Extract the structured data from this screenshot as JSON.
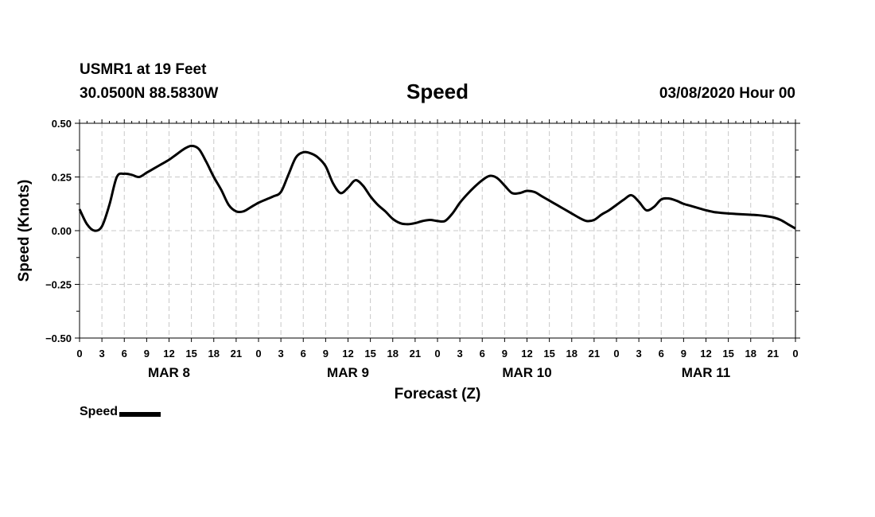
{
  "header": {
    "station": "USMR1 at 19 Feet",
    "coords": "30.0500N 88.5830W",
    "run": "03/08/2020 Hour 00"
  },
  "legend": {
    "label": "Speed",
    "color": "#000000"
  },
  "chart_data": {
    "type": "line",
    "title": "Speed",
    "xlabel": "Forecast (Z)",
    "ylabel": "Speed (Knots)",
    "xlim": [
      0,
      96
    ],
    "ylim": [
      -0.5,
      0.5
    ],
    "yticks": [
      -0.5,
      -0.25,
      0.0,
      0.25,
      0.5
    ],
    "ytick_labels": [
      "−0.50",
      "−0.25",
      "0.00",
      "0.25",
      "0.50"
    ],
    "xtick_labels": [
      "0",
      "3",
      "6",
      "9",
      "12",
      "15",
      "18",
      "21",
      "0",
      "3",
      "6",
      "9",
      "12",
      "15",
      "18",
      "21",
      "0",
      "3",
      "6",
      "9",
      "12",
      "15",
      "18",
      "21",
      "0",
      "3",
      "6",
      "9",
      "12",
      "15",
      "18",
      "21",
      "0"
    ],
    "day_labels": [
      {
        "label": "MAR 8",
        "hour": 12
      },
      {
        "label": "MAR 9",
        "hour": 36
      },
      {
        "label": "MAR 10",
        "hour": 60
      },
      {
        "label": "MAR 11",
        "hour": 84
      }
    ],
    "grid": true,
    "series": [
      {
        "name": "Speed",
        "x": [
          0,
          1,
          2,
          3,
          4,
          5,
          6,
          7,
          8,
          9,
          10,
          11,
          12,
          13,
          14,
          15,
          16,
          17,
          18,
          19,
          20,
          21,
          22,
          23,
          24,
          25,
          26,
          27,
          28,
          29,
          30,
          31,
          32,
          33,
          34,
          35,
          36,
          37,
          38,
          39,
          40,
          41,
          42,
          43,
          44,
          45,
          46,
          47,
          48,
          49,
          50,
          51,
          52,
          53,
          54,
          55,
          56,
          57,
          58,
          59,
          60,
          61,
          62,
          63,
          64,
          65,
          66,
          67,
          68,
          69,
          70,
          71,
          72,
          73,
          74,
          75,
          76,
          77,
          78,
          79,
          80,
          81,
          82,
          83,
          84,
          85,
          86,
          87,
          88,
          89,
          90,
          91,
          92,
          93,
          94,
          95,
          96
        ],
        "values": [
          0.1,
          0.03,
          0.0,
          0.02,
          0.12,
          0.25,
          0.265,
          0.26,
          0.25,
          0.27,
          0.29,
          0.31,
          0.33,
          0.355,
          0.38,
          0.395,
          0.38,
          0.32,
          0.25,
          0.19,
          0.12,
          0.09,
          0.09,
          0.11,
          0.13,
          0.145,
          0.16,
          0.18,
          0.26,
          0.34,
          0.365,
          0.36,
          0.34,
          0.3,
          0.22,
          0.175,
          0.2,
          0.235,
          0.21,
          0.16,
          0.12,
          0.09,
          0.055,
          0.035,
          0.03,
          0.035,
          0.045,
          0.05,
          0.045,
          0.045,
          0.08,
          0.13,
          0.17,
          0.205,
          0.235,
          0.255,
          0.245,
          0.21,
          0.175,
          0.175,
          0.185,
          0.18,
          0.16,
          0.14,
          0.12,
          0.1,
          0.08,
          0.06,
          0.045,
          0.05,
          0.075,
          0.095,
          0.12,
          0.145,
          0.165,
          0.135,
          0.095,
          0.11,
          0.145,
          0.15,
          0.14,
          0.125,
          0.115,
          0.105,
          0.095,
          0.087,
          0.083,
          0.08,
          0.078,
          0.076,
          0.074,
          0.072,
          0.068,
          0.062,
          0.05,
          0.03,
          0.01
        ]
      }
    ]
  }
}
